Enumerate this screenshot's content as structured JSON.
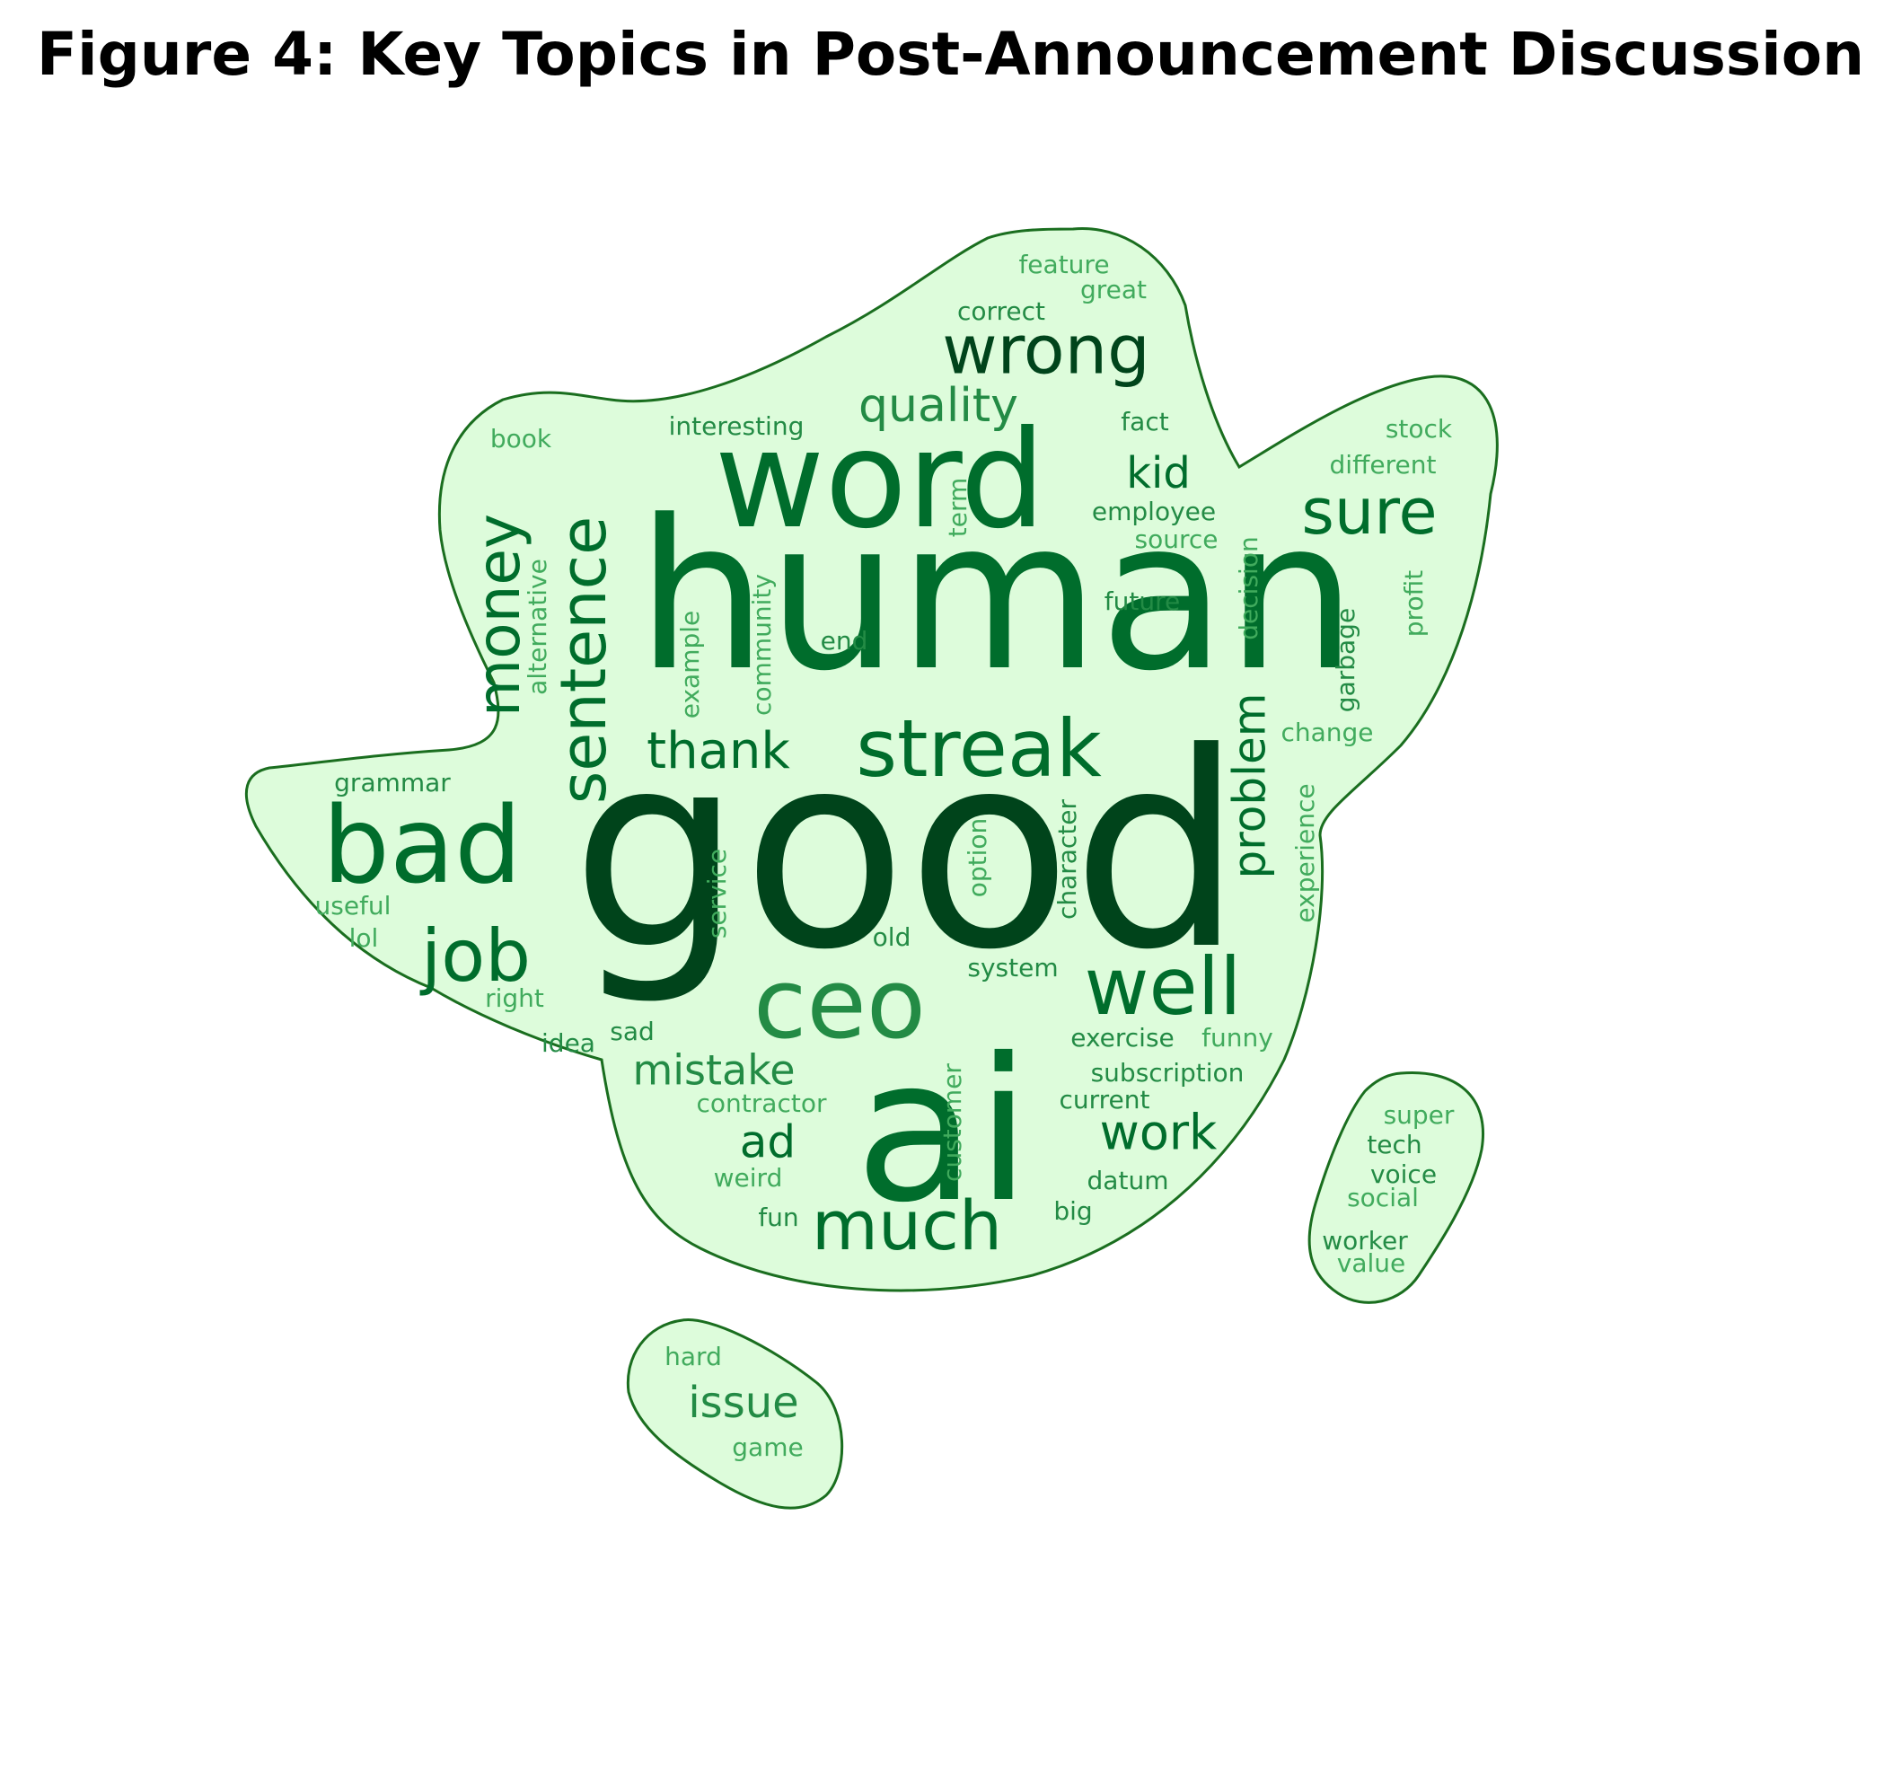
{
  "title": "Figure 4: Key Topics in Post-Announcement Discussion",
  "colors": {
    "shape_fill": "#ddfcdb",
    "shape_stroke": "#1a6e1f",
    "darkest": "#00441b",
    "dark": "#006d2c",
    "mid": "#238b45",
    "light": "#41ab5d",
    "lighter": "#5aae61"
  },
  "words": [
    {
      "text": "good",
      "weight": 1.0,
      "color": "darkest",
      "vertical": false
    },
    {
      "text": "human",
      "weight": 0.97,
      "color": "dark",
      "vertical": false
    },
    {
      "text": "ai",
      "weight": 0.85,
      "color": "dark",
      "vertical": false
    },
    {
      "text": "word",
      "weight": 0.62,
      "color": "dark",
      "vertical": false
    },
    {
      "text": "bad",
      "weight": 0.5,
      "color": "dark",
      "vertical": false
    },
    {
      "text": "ceo",
      "weight": 0.45,
      "color": "mid",
      "vertical": false
    },
    {
      "text": "streak",
      "weight": 0.38,
      "color": "dark",
      "vertical": false
    },
    {
      "text": "well",
      "weight": 0.36,
      "color": "dark",
      "vertical": false
    },
    {
      "text": "job",
      "weight": 0.34,
      "color": "dark",
      "vertical": false
    },
    {
      "text": "sentence",
      "weight": 0.33,
      "color": "dark",
      "vertical": true
    },
    {
      "text": "wrong",
      "weight": 0.32,
      "color": "darkest",
      "vertical": false
    },
    {
      "text": "much",
      "weight": 0.31,
      "color": "dark",
      "vertical": false
    },
    {
      "text": "money",
      "weight": 0.3,
      "color": "dark",
      "vertical": true
    },
    {
      "text": "sure",
      "weight": 0.29,
      "color": "dark",
      "vertical": false
    },
    {
      "text": "problem",
      "weight": 0.26,
      "color": "dark",
      "vertical": true
    },
    {
      "text": "quality",
      "weight": 0.24,
      "color": "mid",
      "vertical": false
    },
    {
      "text": "thank",
      "weight": 0.23,
      "color": "dark",
      "vertical": false
    },
    {
      "text": "work",
      "weight": 0.23,
      "color": "dark",
      "vertical": false
    },
    {
      "text": "kid",
      "weight": 0.22,
      "color": "dark",
      "vertical": false
    },
    {
      "text": "issue",
      "weight": 0.22,
      "color": "mid",
      "vertical": false
    },
    {
      "text": "mistake",
      "weight": 0.22,
      "color": "mid",
      "vertical": false
    },
    {
      "text": "ad",
      "weight": 0.21,
      "color": "dark",
      "vertical": false
    },
    {
      "text": "feature",
      "weight": 0.1,
      "color": "light",
      "vertical": false
    },
    {
      "text": "great",
      "weight": 0.1,
      "color": "light",
      "vertical": false
    },
    {
      "text": "correct",
      "weight": 0.1,
      "color": "mid",
      "vertical": false
    },
    {
      "text": "interesting",
      "weight": 0.1,
      "color": "mid",
      "vertical": false
    },
    {
      "text": "book",
      "weight": 0.1,
      "color": "light",
      "vertical": false
    },
    {
      "text": "fact",
      "weight": 0.1,
      "color": "mid",
      "vertical": false
    },
    {
      "text": "stock",
      "weight": 0.1,
      "color": "light",
      "vertical": false
    },
    {
      "text": "different",
      "weight": 0.1,
      "color": "light",
      "vertical": false
    },
    {
      "text": "employee",
      "weight": 0.1,
      "color": "mid",
      "vertical": false
    },
    {
      "text": "source",
      "weight": 0.1,
      "color": "light",
      "vertical": false
    },
    {
      "text": "term",
      "weight": 0.1,
      "color": "light",
      "vertical": true
    },
    {
      "text": "decision",
      "weight": 0.1,
      "color": "light",
      "vertical": true
    },
    {
      "text": "profit",
      "weight": 0.1,
      "color": "light",
      "vertical": true
    },
    {
      "text": "alternative",
      "weight": 0.1,
      "color": "light",
      "vertical": true
    },
    {
      "text": "community",
      "weight": 0.1,
      "color": "light",
      "vertical": true
    },
    {
      "text": "example",
      "weight": 0.1,
      "color": "light",
      "vertical": true
    },
    {
      "text": "future",
      "weight": 0.1,
      "color": "mid",
      "vertical": false
    },
    {
      "text": "end",
      "weight": 0.1,
      "color": "mid",
      "vertical": false
    },
    {
      "text": "garbage",
      "weight": 0.1,
      "color": "mid",
      "vertical": true
    },
    {
      "text": "change",
      "weight": 0.1,
      "color": "light",
      "vertical": false
    },
    {
      "text": "grammar",
      "weight": 0.1,
      "color": "mid",
      "vertical": false
    },
    {
      "text": "character",
      "weight": 0.1,
      "color": "mid",
      "vertical": true
    },
    {
      "text": "option",
      "weight": 0.1,
      "color": "light",
      "vertical": true
    },
    {
      "text": "experience",
      "weight": 0.1,
      "color": "light",
      "vertical": true
    },
    {
      "text": "service",
      "weight": 0.1,
      "color": "light",
      "vertical": true
    },
    {
      "text": "useful",
      "weight": 0.1,
      "color": "light",
      "vertical": false
    },
    {
      "text": "lol",
      "weight": 0.1,
      "color": "light",
      "vertical": false
    },
    {
      "text": "old",
      "weight": 0.1,
      "color": "mid",
      "vertical": false
    },
    {
      "text": "system",
      "weight": 0.1,
      "color": "mid",
      "vertical": false
    },
    {
      "text": "right",
      "weight": 0.1,
      "color": "light",
      "vertical": false
    },
    {
      "text": "idea",
      "weight": 0.1,
      "color": "mid",
      "vertical": false
    },
    {
      "text": "sad",
      "weight": 0.1,
      "color": "mid",
      "vertical": false
    },
    {
      "text": "exercise",
      "weight": 0.1,
      "color": "mid",
      "vertical": false
    },
    {
      "text": "funny",
      "weight": 0.1,
      "color": "light",
      "vertical": false
    },
    {
      "text": "subscription",
      "weight": 0.1,
      "color": "mid",
      "vertical": false
    },
    {
      "text": "contractor",
      "weight": 0.1,
      "color": "light",
      "vertical": false
    },
    {
      "text": "current",
      "weight": 0.1,
      "color": "mid",
      "vertical": false
    },
    {
      "text": "customer",
      "weight": 0.1,
      "color": "light",
      "vertical": true
    },
    {
      "text": "weird",
      "weight": 0.1,
      "color": "light",
      "vertical": false
    },
    {
      "text": "datum",
      "weight": 0.1,
      "color": "mid",
      "vertical": false
    },
    {
      "text": "fun",
      "weight": 0.1,
      "color": "mid",
      "vertical": false
    },
    {
      "text": "big",
      "weight": 0.1,
      "color": "mid",
      "vertical": false
    },
    {
      "text": "super",
      "weight": 0.1,
      "color": "light",
      "vertical": false
    },
    {
      "text": "tech",
      "weight": 0.1,
      "color": "mid",
      "vertical": false
    },
    {
      "text": "voice",
      "weight": 0.1,
      "color": "mid",
      "vertical": false
    },
    {
      "text": "social",
      "weight": 0.1,
      "color": "light",
      "vertical": false
    },
    {
      "text": "worker",
      "weight": 0.1,
      "color": "mid",
      "vertical": false
    },
    {
      "text": "value",
      "weight": 0.1,
      "color": "light",
      "vertical": false
    },
    {
      "text": "hard",
      "weight": 0.1,
      "color": "light",
      "vertical": false
    },
    {
      "text": "game",
      "weight": 0.1,
      "color": "light",
      "vertical": false
    }
  ]
}
